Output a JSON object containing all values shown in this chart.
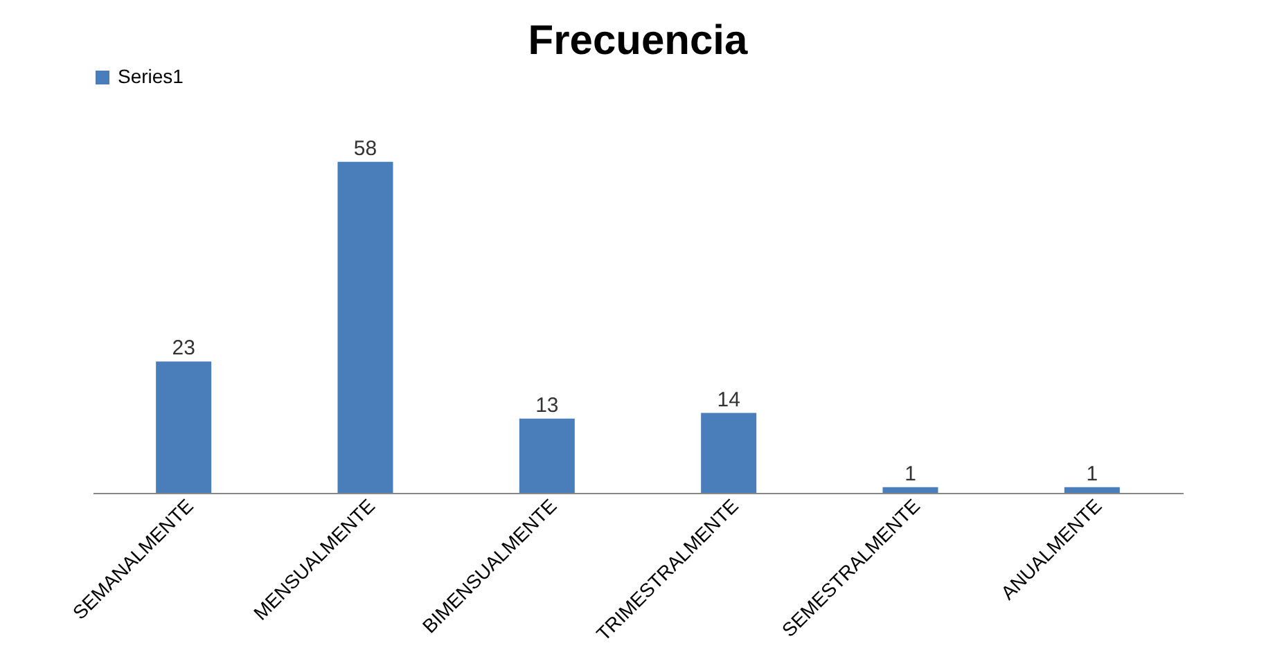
{
  "chart_data": {
    "type": "bar",
    "title": "Frecuencia",
    "categories": [
      "SEMANALMENTE",
      "MENSUALMENTE",
      "BIMENSUALMENTE",
      "TRIMESTRALMENTE",
      "SEMESTRALMENTE",
      "ANUALMENTE"
    ],
    "series": [
      {
        "name": "Series1",
        "color": "#4a7ebb",
        "values": [
          23,
          58,
          13,
          14,
          1,
          1
        ]
      }
    ],
    "data_labels": true,
    "legend": "top",
    "grid": false
  }
}
